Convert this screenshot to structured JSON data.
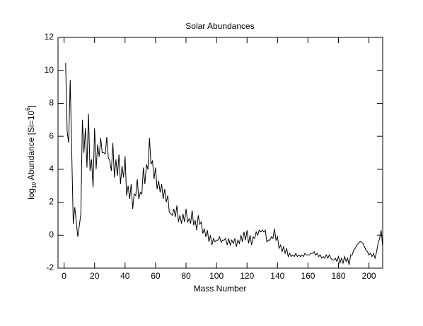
{
  "chart_data": {
    "type": "line",
    "title": "Solar Abundances",
    "xlabel": "Mass Number",
    "ylabel": [
      "log",
      "10",
      " Abundance [Si=10",
      "6",
      "]"
    ],
    "color": "#000000",
    "xlim": [
      -4,
      209
    ],
    "ylim": [
      -2,
      12
    ],
    "xticks": [
      0,
      20,
      40,
      60,
      80,
      100,
      120,
      140,
      160,
      180,
      200
    ],
    "yticks": [
      -2,
      0,
      2,
      4,
      6,
      8,
      10,
      12
    ],
    "x": [
      1,
      2,
      3,
      4,
      6,
      7,
      9,
      10,
      11,
      12,
      13,
      14,
      15,
      16,
      17,
      18,
      19,
      20,
      21,
      22,
      23,
      24,
      25,
      26,
      27,
      28,
      29,
      30,
      31,
      32,
      33,
      34,
      35,
      36,
      37,
      38,
      39,
      40,
      41,
      42,
      43,
      44,
      45,
      46,
      47,
      48,
      49,
      50,
      51,
      52,
      53,
      54,
      55,
      56,
      57,
      58,
      59,
      60,
      61,
      62,
      63,
      64,
      65,
      66,
      67,
      68,
      69,
      70,
      71,
      72,
      73,
      74,
      75,
      76,
      77,
      78,
      79,
      80,
      81,
      82,
      83,
      84,
      85,
      86,
      87,
      88,
      89,
      90,
      91,
      92,
      93,
      94,
      95,
      96,
      97,
      98,
      99,
      100,
      101,
      102,
      103,
      104,
      105,
      106,
      107,
      108,
      109,
      110,
      111,
      112,
      113,
      114,
      115,
      116,
      117,
      118,
      119,
      120,
      121,
      122,
      123,
      124,
      125,
      126,
      127,
      128,
      129,
      130,
      131,
      132,
      133,
      134,
      135,
      136,
      137,
      138,
      139,
      140,
      141,
      142,
      143,
      144,
      145,
      146,
      147,
      148,
      149,
      150,
      151,
      152,
      153,
      154,
      155,
      156,
      157,
      158,
      159,
      160,
      161,
      162,
      163,
      164,
      165,
      166,
      167,
      168,
      169,
      170,
      171,
      172,
      173,
      174,
      175,
      176,
      177,
      178,
      179,
      180,
      181,
      182,
      183,
      184,
      185,
      186,
      187,
      188,
      189,
      190,
      191,
      192,
      193,
      194,
      195,
      196,
      197,
      198,
      199,
      200,
      201,
      202,
      203,
      204,
      205,
      206,
      207,
      208,
      209
    ],
    "values": [
      10.45,
      6.3,
      5.6,
      9.43,
      0.7,
      1.7,
      -0.1,
      0.6,
      1.3,
      7.0,
      5.0,
      6.5,
      4.1,
      7.37,
      3.9,
      4.6,
      2.9,
      6.5,
      4.0,
      5.5,
      4.76,
      5.9,
      5.0,
      5.0,
      4.93,
      5.96,
      4.7,
      4.5,
      3.9,
      5.6,
      3.5,
      4.6,
      3.6,
      4.9,
      3.1,
      4.2,
      3.5,
      4.79,
      2.4,
      3.0,
      2.2,
      3.1,
      1.6,
      2.5,
      2.4,
      3.4,
      2.2,
      2.6,
      2.5,
      4.1,
      3.1,
      4.3,
      3.98,
      5.9,
      4.3,
      4.5,
      3.4,
      4.1,
      2.8,
      3.3,
      2.6,
      3.1,
      2.2,
      2.8,
      2.0,
      2.4,
      1.4,
      1.3,
      1.2,
      1.6,
      1.1,
      1.8,
      0.8,
      1.2,
      0.7,
      1.3,
      0.8,
      1.6,
      0.8,
      1.0,
      0.7,
      1.5,
      0.6,
      0.9,
      0.3,
      1.2,
      0.66,
      0.8,
      0.1,
      0.4,
      -0.1,
      0.3,
      -0.4,
      0.0,
      -0.6,
      -0.2,
      -0.4,
      -0.3,
      -0.3,
      -0.1,
      -0.42,
      -0.3,
      -0.3,
      -0.2,
      -0.6,
      -0.2,
      -0.6,
      -0.3,
      -0.5,
      -0.2,
      -0.7,
      -0.3,
      -0.5,
      0.0,
      -0.4,
      0.2,
      -0.3,
      0.3,
      -0.5,
      0.0,
      -0.6,
      -0.1,
      -0.2,
      0.2,
      0.0,
      0.3,
      0.2,
      0.3,
      0.2,
      0.3,
      -0.4,
      -0.3,
      -0.3,
      -0.1,
      -0.2,
      0.4,
      -0.3,
      -0.1,
      -0.8,
      -0.6,
      -1.0,
      -0.7,
      -1.1,
      -0.8,
      -1.3,
      -1.1,
      -1.3,
      -1.2,
      -1.3,
      -1.1,
      -1.3,
      -1.2,
      -1.3,
      -1.2,
      -1.3,
      -1.1,
      -1.2,
      -1.2,
      -1.2,
      -1.1,
      -1.1,
      -1.0,
      -1.2,
      -1.1,
      -1.3,
      -1.2,
      -1.4,
      -1.3,
      -1.4,
      -1.2,
      -1.4,
      -1.2,
      -1.4,
      -1.5,
      -1.5,
      -1.4,
      -1.6,
      -1.3,
      -1.7,
      -1.4,
      -1.7,
      -1.3,
      -1.6,
      -1.4,
      -1.8,
      -1.2,
      -1.2,
      -0.9,
      -0.8,
      -0.6,
      -0.5,
      -0.4,
      -0.4,
      -0.5,
      -0.7,
      -0.9,
      -1.0,
      -1.2,
      -1.1,
      -1.3,
      -1.1,
      -1.4,
      -1.0,
      -0.5,
      -0.2,
      0.3,
      -0.7
    ]
  }
}
